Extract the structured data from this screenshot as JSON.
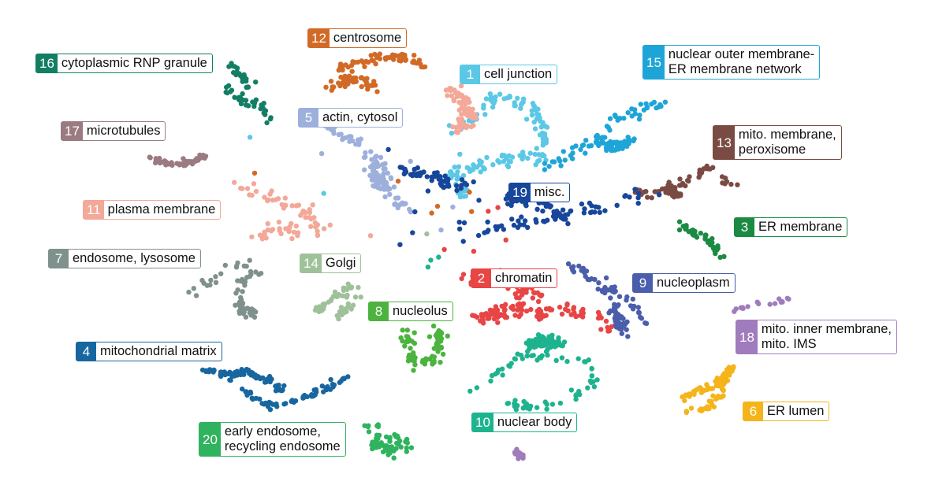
{
  "chart_data": {
    "type": "scatter",
    "title": "",
    "xlabel": "",
    "ylabel": "",
    "grid": false,
    "axes_visible": false,
    "clusters": [
      {
        "id": "1",
        "lines": [
          "cell junction"
        ],
        "color": "#5bc8e6"
      },
      {
        "id": "2",
        "lines": [
          "chromatin"
        ],
        "color": "#e84545"
      },
      {
        "id": "3",
        "lines": [
          "ER membrane"
        ],
        "color": "#1b8a42"
      },
      {
        "id": "4",
        "lines": [
          "mitochondrial matrix"
        ],
        "color": "#1766a0"
      },
      {
        "id": "5",
        "lines": [
          "actin, cytosol"
        ],
        "color": "#9db0dc"
      },
      {
        "id": "6",
        "lines": [
          "ER lumen"
        ],
        "color": "#f4b41a"
      },
      {
        "id": "7",
        "lines": [
          "endosome, lysosome"
        ],
        "color": "#7f918c"
      },
      {
        "id": "8",
        "lines": [
          "nucleolus"
        ],
        "color": "#4cb33f"
      },
      {
        "id": "9",
        "lines": [
          "nucleoplasm"
        ],
        "color": "#4a5eab"
      },
      {
        "id": "10",
        "lines": [
          "nuclear body"
        ],
        "color": "#1eb38f"
      },
      {
        "id": "11",
        "lines": [
          "plasma membrane"
        ],
        "color": "#f3a898"
      },
      {
        "id": "12",
        "lines": [
          "centrosome"
        ],
        "color": "#d26a27"
      },
      {
        "id": "13",
        "lines": [
          "mito. membrane,",
          "peroxisome"
        ],
        "color": "#7a4b43"
      },
      {
        "id": "14",
        "lines": [
          "Golgi"
        ],
        "color": "#9fc19a"
      },
      {
        "id": "15",
        "lines": [
          "nuclear outer membrane-",
          "ER membrane network"
        ],
        "color": "#1ea5d8"
      },
      {
        "id": "16",
        "lines": [
          "cytoplasmic RNP granule"
        ],
        "color": "#127e63"
      },
      {
        "id": "17",
        "lines": [
          "microtubules"
        ],
        "color": "#9a7b80"
      },
      {
        "id": "18",
        "lines": [
          "mito. inner membrane,",
          "mito. IMS"
        ],
        "color": "#a07cbc"
      },
      {
        "id": "19",
        "lines": [
          "misc."
        ],
        "color": "#17469b"
      },
      {
        "id": "20",
        "lines": [
          "early endosome,",
          "recycling endosome"
        ],
        "color": "#2fb35e"
      }
    ]
  }
}
